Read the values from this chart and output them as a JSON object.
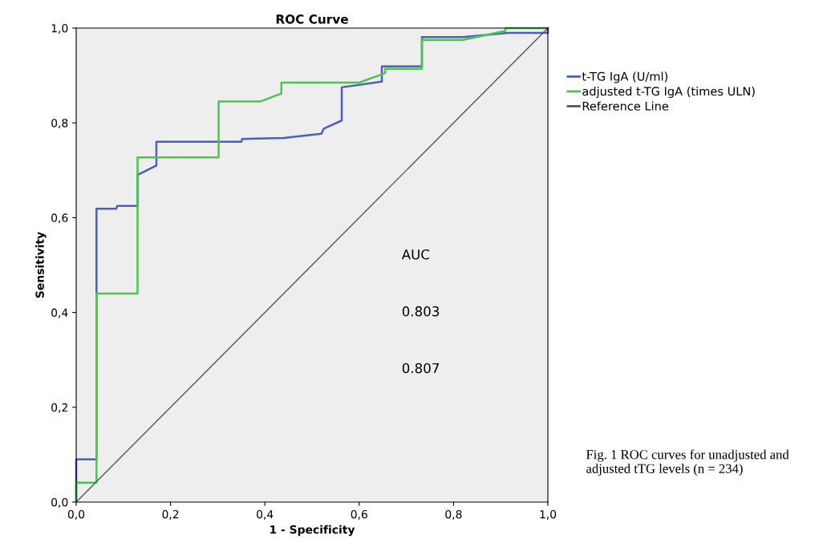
{
  "chart_data": {
    "type": "line",
    "title": "ROC Curve",
    "xlabel": "1 - Specificity",
    "ylabel": "Sensitivity",
    "series": [
      {
        "name": "t-TG IgA (U/ml)",
        "color": "#4a5fbf",
        "x": [
          0,
          0,
          0.043,
          0.043,
          0.085,
          0.087,
          0.13,
          0.13,
          0.17,
          0.17,
          0.35,
          0.352,
          0.44,
          0.52,
          0.525,
          0.563,
          0.563,
          0.648,
          0.648,
          0.733,
          0.733,
          0.82,
          0.915,
          1,
          1
        ],
        "values": [
          0,
          0.09,
          0.09,
          0.619,
          0.619,
          0.625,
          0.625,
          0.69,
          0.71,
          0.76,
          0.76,
          0.766,
          0.768,
          0.777,
          0.788,
          0.805,
          0.875,
          0.887,
          0.919,
          0.919,
          0.981,
          0.981,
          0.99,
          0.99,
          1
        ]
      },
      {
        "name": "adjusted t-TG IgA (times ULN)",
        "color": "#4ec44e",
        "x": [
          0,
          0,
          0.043,
          0.043,
          0.13,
          0.13,
          0.302,
          0.302,
          0.39,
          0.435,
          0.435,
          0.6,
          0.655,
          0.655,
          0.733,
          0.733,
          0.82,
          0.91,
          0.91,
          1
        ],
        "values": [
          0,
          0.041,
          0.041,
          0.44,
          0.44,
          0.727,
          0.727,
          0.845,
          0.845,
          0.862,
          0.885,
          0.885,
          0.905,
          0.914,
          0.914,
          0.975,
          0.975,
          0.994,
          1,
          1
        ]
      },
      {
        "name": "Reference Line",
        "color": "#555555",
        "x": [
          0,
          1
        ],
        "values": [
          0,
          1
        ]
      }
    ],
    "xlim": [
      0,
      1
    ],
    "ylim": [
      0,
      1
    ],
    "xticks": [
      {
        "value": 0,
        "label": "0,0"
      },
      {
        "value": 0.2,
        "label": "0,2"
      },
      {
        "value": 0.4,
        "label": "0,4"
      },
      {
        "value": 0.6,
        "label": "0,6"
      },
      {
        "value": 0.8,
        "label": "0,8"
      },
      {
        "value": 1,
        "label": "1,0"
      }
    ],
    "yticks": [
      {
        "value": 0,
        "label": "0,0"
      },
      {
        "value": 0.2,
        "label": "0,2"
      },
      {
        "value": 0.4,
        "label": "0,4"
      },
      {
        "value": 0.6,
        "label": "0,6"
      },
      {
        "value": 0.8,
        "label": "0,8"
      },
      {
        "value": 1,
        "label": "1,0"
      }
    ],
    "legend": "right",
    "annotations": [
      "AUC",
      "0.803",
      "0.807",
      "Fig. 1 ROC curves for unadjusted and adjusted tTG levels (n = 234)"
    ]
  }
}
